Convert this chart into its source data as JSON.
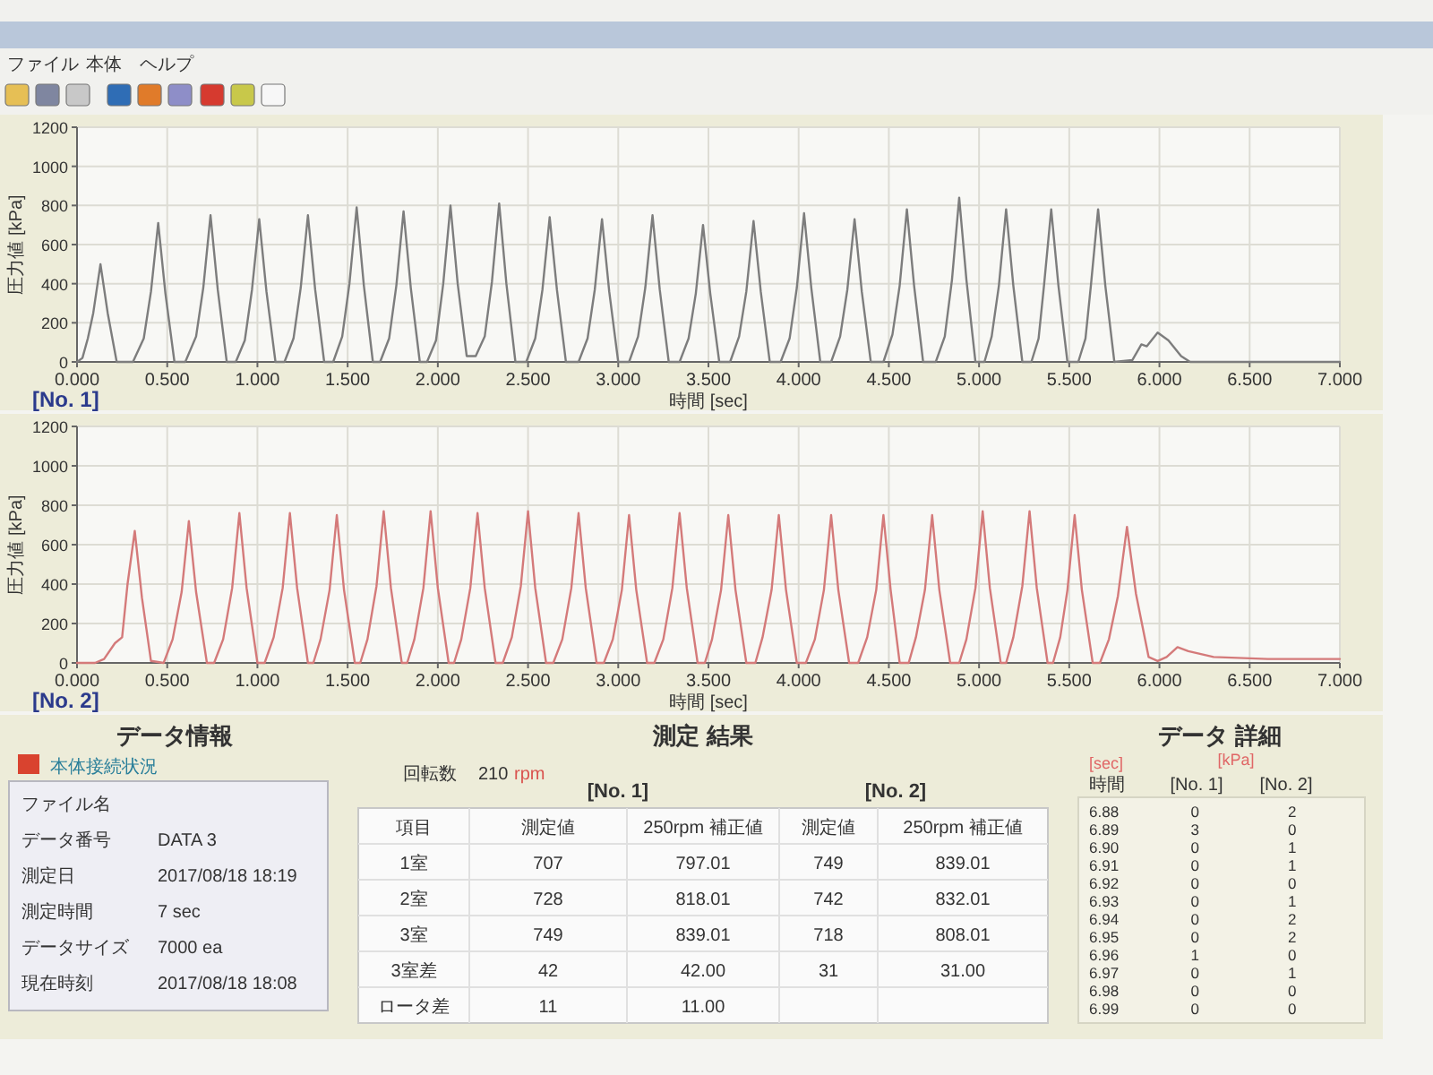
{
  "chart_data": [
    {
      "type": "other",
      "annotations": [
        "ファイル",
        "本体",
        "ヘルプ"
      ]
    },
    {
      "type": "line",
      "title": "[No. 1]",
      "xlabel": "時間 [sec]",
      "ylabel": "圧力値 [kPa]",
      "x": [
        0,
        0.03,
        0.06,
        0.09,
        0.13,
        0.17,
        0.22,
        0.31,
        0.37,
        0.41,
        0.45,
        0.49,
        0.54,
        0.6,
        0.66,
        0.7,
        0.74,
        0.78,
        0.83,
        0.88,
        0.93,
        0.97,
        1.01,
        1.05,
        1.1,
        1.15,
        1.2,
        1.24,
        1.28,
        1.32,
        1.37,
        1.42,
        1.47,
        1.51,
        1.55,
        1.59,
        1.64,
        1.68,
        1.73,
        1.77,
        1.81,
        1.85,
        1.9,
        1.94,
        1.99,
        2.03,
        2.07,
        2.11,
        2.16,
        2.21,
        2.26,
        2.3,
        2.34,
        2.38,
        2.43,
        2.49,
        2.54,
        2.58,
        2.62,
        2.66,
        2.71,
        2.78,
        2.83,
        2.87,
        2.91,
        2.95,
        3.0,
        3.06,
        3.11,
        3.15,
        3.19,
        3.23,
        3.28,
        3.34,
        3.39,
        3.43,
        3.47,
        3.51,
        3.56,
        3.62,
        3.67,
        3.71,
        3.75,
        3.79,
        3.84,
        3.9,
        3.95,
        3.99,
        4.03,
        4.07,
        4.12,
        4.18,
        4.23,
        4.27,
        4.31,
        4.35,
        4.4,
        4.47,
        4.52,
        4.56,
        4.6,
        4.64,
        4.69,
        4.76,
        4.81,
        4.85,
        4.89,
        4.93,
        4.98,
        5.03,
        5.07,
        5.11,
        5.15,
        5.19,
        5.24,
        5.29,
        5.33,
        5.36,
        5.4,
        5.44,
        5.49,
        5.55,
        5.59,
        5.62,
        5.66,
        5.7,
        5.75,
        5.85,
        5.9,
        5.93,
        5.99,
        6.05,
        6.12,
        6.17,
        6.5,
        7.0
      ],
      "series": [
        {
          "color": "#7d7d7d",
          "values": [
            0,
            20,
            120,
            250,
            500,
            250,
            0,
            0,
            120,
            360,
            710,
            350,
            0,
            0,
            130,
            380,
            750,
            370,
            0,
            0,
            110,
            370,
            730,
            360,
            0,
            0,
            120,
            380,
            750,
            370,
            0,
            0,
            130,
            400,
            790,
            390,
            0,
            0,
            120,
            390,
            770,
            380,
            0,
            0,
            110,
            400,
            800,
            400,
            30,
            30,
            130,
            410,
            810,
            400,
            0,
            0,
            120,
            370,
            740,
            370,
            0,
            0,
            120,
            370,
            730,
            360,
            0,
            0,
            130,
            380,
            750,
            370,
            0,
            0,
            120,
            350,
            700,
            350,
            0,
            0,
            130,
            360,
            720,
            360,
            0,
            0,
            120,
            380,
            760,
            380,
            0,
            0,
            130,
            370,
            730,
            360,
            0,
            0,
            140,
            390,
            780,
            390,
            0,
            0,
            130,
            420,
            840,
            420,
            0,
            0,
            130,
            390,
            780,
            390,
            0,
            0,
            120,
            390,
            780,
            390,
            0,
            0,
            120,
            390,
            780,
            390,
            0,
            10,
            90,
            80,
            150,
            110,
            30,
            0,
            0,
            0
          ]
        }
      ],
      "xlim": [
        0,
        7
      ],
      "ylim": [
        0,
        1200
      ],
      "xticks": [
        {
          "value": 0,
          "label": "0.000"
        },
        {
          "value": 0.5,
          "label": "0.500"
        },
        {
          "value": 1,
          "label": "1.000"
        },
        {
          "value": 1.5,
          "label": "1.500"
        },
        {
          "value": 2,
          "label": "2.000"
        },
        {
          "value": 2.5,
          "label": "2.500"
        },
        {
          "value": 3,
          "label": "3.000"
        },
        {
          "value": 3.5,
          "label": "3.500"
        },
        {
          "value": 4,
          "label": "4.000"
        },
        {
          "value": 4.5,
          "label": "4.500"
        },
        {
          "value": 5,
          "label": "5.000"
        },
        {
          "value": 5.5,
          "label": "5.500"
        },
        {
          "value": 6,
          "label": "6.000"
        },
        {
          "value": 6.5,
          "label": "6.500"
        },
        {
          "value": 7,
          "label": "7.000"
        }
      ],
      "yticks": [
        0,
        200,
        400,
        600,
        800,
        1000,
        1200
      ],
      "grid": true
    },
    {
      "type": "line",
      "title": "[No. 2]",
      "xlabel": "時間 [sec]",
      "ylabel": "圧力値 [kPa]",
      "x": [
        0,
        0.1,
        0.15,
        0.21,
        0.25,
        0.28,
        0.32,
        0.36,
        0.41,
        0.48,
        0.53,
        0.58,
        0.62,
        0.66,
        0.72,
        0.76,
        0.81,
        0.86,
        0.9,
        0.94,
        1.0,
        1.04,
        1.09,
        1.14,
        1.18,
        1.22,
        1.28,
        1.31,
        1.35,
        1.4,
        1.44,
        1.48,
        1.54,
        1.57,
        1.61,
        1.66,
        1.7,
        1.74,
        1.8,
        1.83,
        1.87,
        1.92,
        1.96,
        2.0,
        2.06,
        2.09,
        2.13,
        2.18,
        2.22,
        2.26,
        2.32,
        2.36,
        2.41,
        2.46,
        2.5,
        2.54,
        2.6,
        2.64,
        2.69,
        2.74,
        2.78,
        2.82,
        2.88,
        2.92,
        2.97,
        3.02,
        3.06,
        3.1,
        3.16,
        3.2,
        3.25,
        3.3,
        3.34,
        3.38,
        3.44,
        3.48,
        3.52,
        3.57,
        3.61,
        3.65,
        3.71,
        3.76,
        3.8,
        3.85,
        3.89,
        3.93,
        3.99,
        4.04,
        4.09,
        4.14,
        4.18,
        4.22,
        4.28,
        4.33,
        4.38,
        4.43,
        4.47,
        4.51,
        4.56,
        4.61,
        4.65,
        4.7,
        4.74,
        4.78,
        4.84,
        4.89,
        4.93,
        4.98,
        5.02,
        5.06,
        5.12,
        5.15,
        5.19,
        5.24,
        5.28,
        5.32,
        5.38,
        5.41,
        5.45,
        5.49,
        5.53,
        5.57,
        5.63,
        5.67,
        5.72,
        5.77,
        5.82,
        5.87,
        5.94,
        5.99,
        6.04,
        6.1,
        6.16,
        6.3,
        6.6,
        7.0
      ],
      "series": [
        {
          "color": "#d47a7a",
          "values": [
            0,
            0,
            20,
            100,
            130,
            400,
            670,
            330,
            10,
            0,
            120,
            360,
            720,
            360,
            0,
            0,
            120,
            380,
            760,
            380,
            0,
            0,
            130,
            380,
            760,
            380,
            0,
            0,
            120,
            370,
            750,
            370,
            0,
            0,
            120,
            390,
            770,
            380,
            0,
            0,
            120,
            380,
            770,
            380,
            0,
            0,
            120,
            380,
            760,
            380,
            0,
            0,
            130,
            390,
            770,
            380,
            0,
            0,
            120,
            380,
            760,
            380,
            0,
            0,
            120,
            370,
            750,
            370,
            0,
            0,
            120,
            380,
            760,
            380,
            0,
            0,
            120,
            370,
            750,
            370,
            0,
            0,
            130,
            370,
            750,
            370,
            0,
            0,
            120,
            370,
            750,
            370,
            0,
            0,
            130,
            370,
            750,
            370,
            0,
            0,
            130,
            370,
            750,
            370,
            0,
            0,
            120,
            380,
            770,
            380,
            0,
            0,
            130,
            390,
            770,
            380,
            0,
            0,
            130,
            370,
            750,
            370,
            0,
            0,
            120,
            340,
            690,
            350,
            30,
            10,
            30,
            80,
            60,
            30,
            20,
            20
          ]
        }
      ],
      "xlim": [
        0,
        7
      ],
      "ylim": [
        0,
        1200
      ],
      "xticks": [
        {
          "value": 0,
          "label": "0.000"
        },
        {
          "value": 0.5,
          "label": "0.500"
        },
        {
          "value": 1,
          "label": "1.000"
        },
        {
          "value": 1.5,
          "label": "1.500"
        },
        {
          "value": 2,
          "label": "2.000"
        },
        {
          "value": 2.5,
          "label": "2.500"
        },
        {
          "value": 3,
          "label": "3.000"
        },
        {
          "value": 3.5,
          "label": "3.500"
        },
        {
          "value": 4,
          "label": "4.000"
        },
        {
          "value": 4.5,
          "label": "4.500"
        },
        {
          "value": 5,
          "label": "5.000"
        },
        {
          "value": 5.5,
          "label": "5.500"
        },
        {
          "value": 6,
          "label": "6.000"
        },
        {
          "value": 6.5,
          "label": "6.500"
        },
        {
          "value": 7,
          "label": "7.000"
        }
      ],
      "yticks": [
        0,
        200,
        400,
        600,
        800,
        1000,
        1200
      ],
      "grid": true
    },
    {
      "type": "other",
      "title": "データ情報",
      "annotations": [
        "本体接続状況",
        "ファイル名",
        null,
        "データ番号",
        "DATA 3",
        "測定日",
        "2017/08/18 18:19",
        "測定時間",
        "7 sec",
        "データサイズ",
        "7000 ea",
        "現在時刻",
        "2017/08/18 18:08"
      ]
    },
    {
      "type": "other",
      "title": "測定 結果",
      "annotations": [
        "回転数",
        "210",
        "rpm",
        "[No. 1]",
        "[No. 2]",
        "項目",
        "測定値",
        "250rpm 補正値",
        "測定値",
        "250rpm 補正値",
        "1室",
        "707",
        "797.01",
        "749",
        "839.01",
        "2室",
        "728",
        "818.01",
        "742",
        "832.01",
        "3室",
        "749",
        "839.01",
        "718",
        "808.01",
        "3室差",
        "42",
        "42.00",
        "31",
        "31.00",
        "ロータ差",
        "11",
        "11.00",
        null,
        null
      ]
    },
    {
      "type": "other",
      "title": "データ 詳細",
      "annotations": [
        "[sec]",
        "[kPa]",
        "時間",
        "[No. 1]",
        "[No. 2]",
        "6.88 0 2",
        "6.89 3 0",
        "6.90 0 1",
        "6.91 0 1",
        "6.92 0 0",
        "6.93 0 1",
        "6.94 0 2",
        "6.95 0 2",
        "6.96 1 0",
        "6.97 0 1",
        "6.98 0 0",
        "6.99 0 0"
      ]
    }
  ]
}
